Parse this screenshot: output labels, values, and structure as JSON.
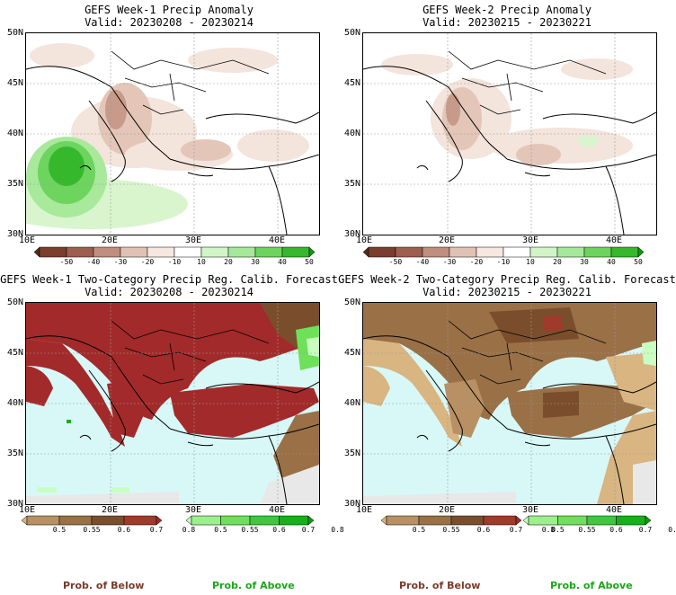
{
  "panels": [
    {
      "title": "GEFS Week-1 Precip Anomaly",
      "valid": "Valid: 20230208 - 20230214"
    },
    {
      "title": "GEFS Week-2 Precip Anomaly",
      "valid": "Valid: 20230215 - 20230221"
    },
    {
      "title": "GEFS Week-1 Two-Category Precip Reg. Calib. Forecast",
      "valid": "Valid: 20230208 - 20230214"
    },
    {
      "title": "GEFS Week-2 Two-Category Precip Reg. Calib. Forecast",
      "valid": "Valid: 20230215 - 20230221"
    }
  ],
  "axes": {
    "lat_labels": [
      "50N",
      "45N",
      "40N",
      "35N",
      "30N"
    ],
    "lon_labels": [
      "10E",
      "20E",
      "30E",
      "40E"
    ]
  },
  "anomaly_colorbar": {
    "labels": [
      "-50",
      "-40",
      "-30",
      "-20",
      "-10",
      "10",
      "20",
      "30",
      "40",
      "50"
    ],
    "colors": [
      "#5a2a1e",
      "#7a3e2e",
      "#9c5e4e",
      "#c08e7e",
      "#e0c2b4",
      "#f6e8e0",
      "#ffffff",
      "#d2f5c8",
      "#a6e89a",
      "#6cd45c",
      "#36b82c",
      "#0e9a0e"
    ]
  },
  "prob_colorbars": {
    "below": {
      "labels": [
        "0.5",
        "0.55",
        "0.6",
        "0.7",
        "0.8"
      ],
      "colors": [
        "#d9b582",
        "#b89064",
        "#9a7046",
        "#7a4e2c",
        "#a03a2a",
        "#a32a2a"
      ]
    },
    "above": {
      "labels": [
        "0.5",
        "0.55",
        "0.6",
        "0.7",
        "0.8"
      ],
      "colors": [
        "#c8ffc0",
        "#9af08a",
        "#6ee05a",
        "#3ec83a",
        "#18b018",
        "#08a008"
      ]
    }
  },
  "legend": {
    "below": "Prob. of Below",
    "above": "Prob. of Above"
  },
  "colors": {
    "sea_forecast": "#d8f8f8",
    "below_text": "#7a3a2a",
    "above_text": "#18a818"
  }
}
